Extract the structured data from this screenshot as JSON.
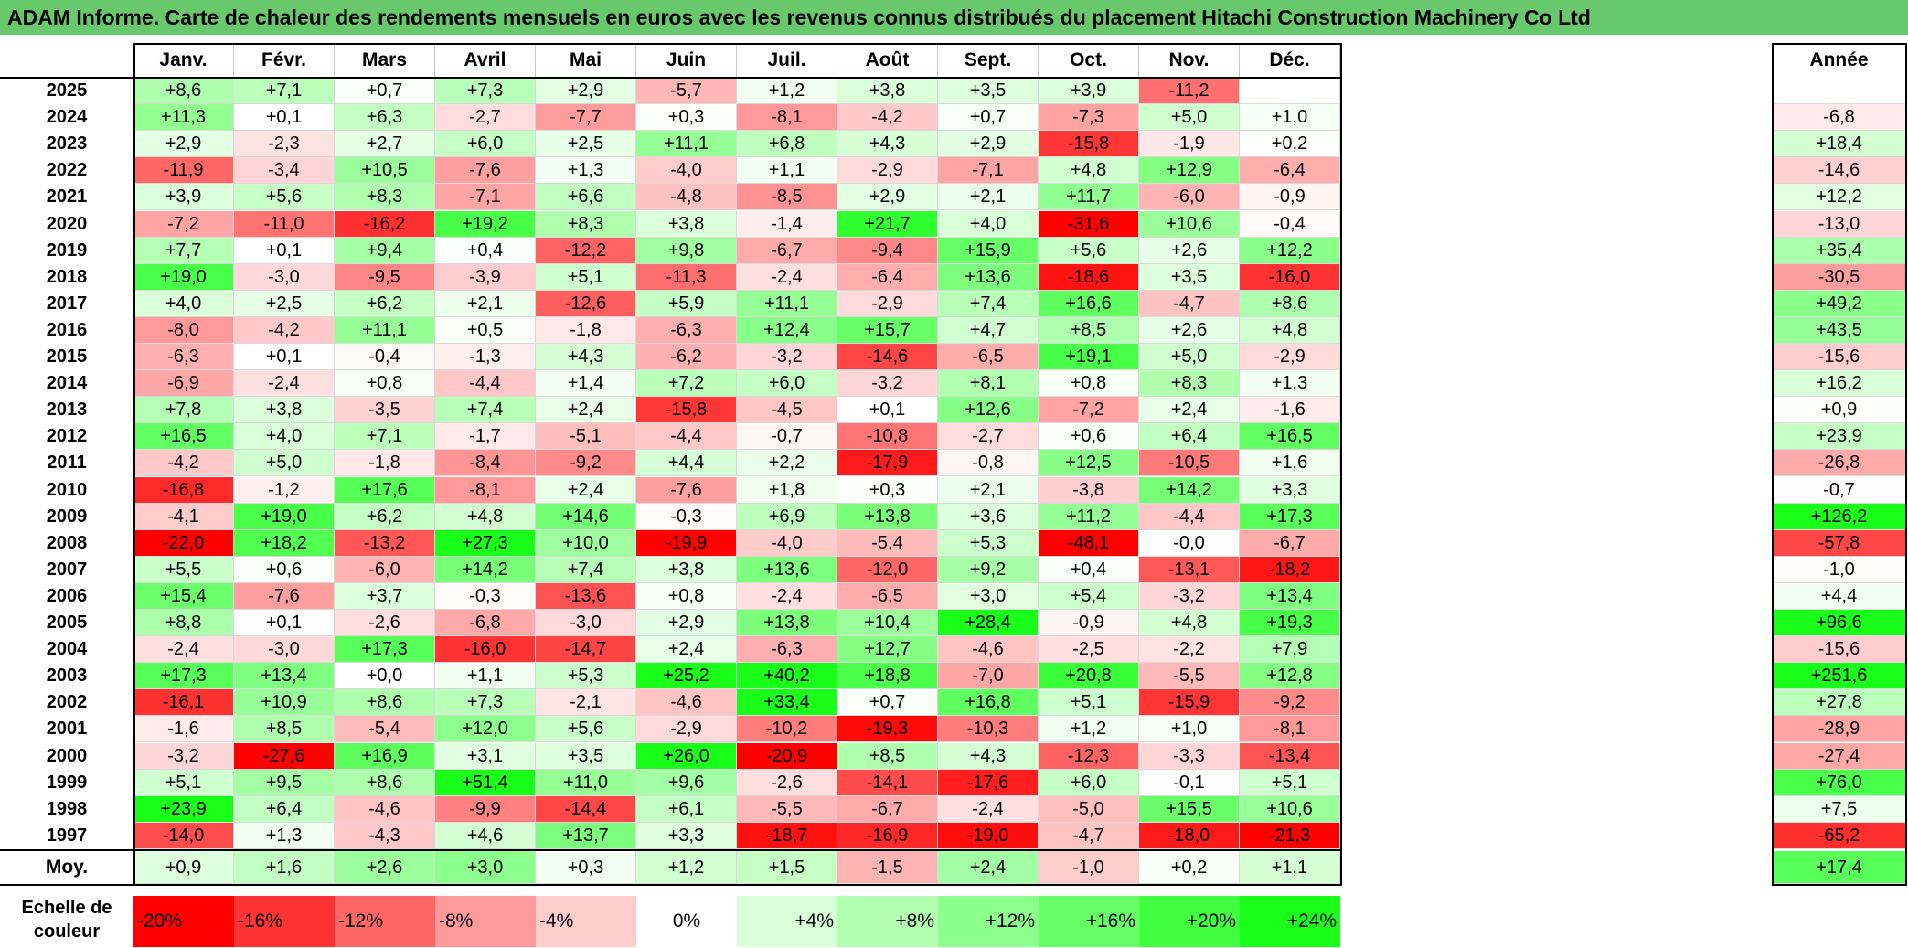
{
  "title": "ADAM Informe. Carte de chaleur des rendements mensuels en euros avec les revenus connus distribués du placement Hitachi Construction Machinery Co Ltd",
  "colors": {
    "title_bg": "#67c96c",
    "negative": "#ff0000",
    "neutral": "#ffffff",
    "positive": "#19ff19"
  },
  "chart_data": {
    "type": "heatmap",
    "months": [
      "Janv.",
      "Févr.",
      "Mars",
      "Avril",
      "Mai",
      "Juin",
      "Juil.",
      "Août",
      "Sept.",
      "Oct.",
      "Nov.",
      "Déc."
    ],
    "annual_label": "Année",
    "rows": [
      {
        "year": "2025",
        "values": [
          "+8,6",
          "+7,1",
          "+0,7",
          "+7,3",
          "+2,9",
          "-5,7",
          "+1,2",
          "+3,8",
          "+3,5",
          "+3,9",
          "-11,2",
          ""
        ],
        "annual": ""
      },
      {
        "year": "2024",
        "values": [
          "+11,3",
          "+0,1",
          "+6,3",
          "-2,7",
          "-7,7",
          "+0,3",
          "-8,1",
          "-4,2",
          "+0,7",
          "-7,3",
          "+5,0",
          "+1,0"
        ],
        "annual": "-6,8"
      },
      {
        "year": "2023",
        "values": [
          "+2,9",
          "-2,3",
          "+2,7",
          "+6,0",
          "+2,5",
          "+11,1",
          "+6,8",
          "+4,3",
          "+2,9",
          "-15,8",
          "-1,9",
          "+0,2"
        ],
        "annual": "+18,4"
      },
      {
        "year": "2022",
        "values": [
          "-11,9",
          "-3,4",
          "+10,5",
          "-7,6",
          "+1,3",
          "-4,0",
          "+1,1",
          "-2,9",
          "-7,1",
          "+4,8",
          "+12,9",
          "-6,4"
        ],
        "annual": "-14,6"
      },
      {
        "year": "2021",
        "values": [
          "+3,9",
          "+5,6",
          "+8,3",
          "-7,1",
          "+6,6",
          "-4,8",
          "-8,5",
          "+2,9",
          "+2,1",
          "+11,7",
          "-6,0",
          "-0,9"
        ],
        "annual": "+12,2"
      },
      {
        "year": "2020",
        "values": [
          "-7,2",
          "-11,0",
          "-16,2",
          "+19,2",
          "+8,3",
          "+3,8",
          "-1,4",
          "+21,7",
          "+4,0",
          "-31,6",
          "+10,6",
          "-0,4"
        ],
        "annual": "-13,0"
      },
      {
        "year": "2019",
        "values": [
          "+7,7",
          "+0,1",
          "+9,4",
          "+0,4",
          "-12,2",
          "+9,8",
          "-6,7",
          "-9,4",
          "+15,9",
          "+5,6",
          "+2,6",
          "+12,2"
        ],
        "annual": "+35,4"
      },
      {
        "year": "2018",
        "values": [
          "+19,0",
          "-3,0",
          "-9,5",
          "-3,9",
          "+5,1",
          "-11,3",
          "-2,4",
          "-6,4",
          "+13,6",
          "-18,6",
          "+3,5",
          "-16,0"
        ],
        "annual": "-30,5"
      },
      {
        "year": "2017",
        "values": [
          "+4,0",
          "+2,5",
          "+6,2",
          "+2,1",
          "-12,6",
          "+5,9",
          "+11,1",
          "-2,9",
          "+7,4",
          "+16,6",
          "-4,7",
          "+8,6"
        ],
        "annual": "+49,2"
      },
      {
        "year": "2016",
        "values": [
          "-8,0",
          "-4,2",
          "+11,1",
          "+0,5",
          "-1,8",
          "-6,3",
          "+12,4",
          "+15,7",
          "+4,7",
          "+8,5",
          "+2,6",
          "+4,8"
        ],
        "annual": "+43,5"
      },
      {
        "year": "2015",
        "values": [
          "-6,3",
          "+0,1",
          "-0,4",
          "-1,3",
          "+4,3",
          "-6,2",
          "-3,2",
          "-14,6",
          "-6,5",
          "+19,1",
          "+5,0",
          "-2,9"
        ],
        "annual": "-15,6"
      },
      {
        "year": "2014",
        "values": [
          "-6,9",
          "-2,4",
          "+0,8",
          "-4,4",
          "+1,4",
          "+7,2",
          "+6,0",
          "-3,2",
          "+8,1",
          "+0,8",
          "+8,3",
          "+1,3"
        ],
        "annual": "+16,2"
      },
      {
        "year": "2013",
        "values": [
          "+7,8",
          "+3,8",
          "-3,5",
          "+7,4",
          "+2,4",
          "-15,8",
          "-4,5",
          "+0,1",
          "+12,6",
          "-7,2",
          "+2,4",
          "-1,6"
        ],
        "annual": "+0,9"
      },
      {
        "year": "2012",
        "values": [
          "+16,5",
          "+4,0",
          "+7,1",
          "-1,7",
          "-5,1",
          "-4,4",
          "-0,7",
          "-10,8",
          "-2,7",
          "+0,6",
          "+6,4",
          "+16,5"
        ],
        "annual": "+23,9"
      },
      {
        "year": "2011",
        "values": [
          "-4,2",
          "+5,0",
          "-1,8",
          "-8,4",
          "-9,2",
          "+4,4",
          "+2,2",
          "-17,9",
          "-0,8",
          "+12,5",
          "-10,5",
          "+1,6"
        ],
        "annual": "-26,8"
      },
      {
        "year": "2010",
        "values": [
          "-16,8",
          "-1,2",
          "+17,6",
          "-8,1",
          "+2,4",
          "-7,6",
          "+1,8",
          "+0,3",
          "+2,1",
          "-3,8",
          "+14,2",
          "+3,3"
        ],
        "annual": "-0,7"
      },
      {
        "year": "2009",
        "values": [
          "-4,1",
          "+19,0",
          "+6,2",
          "+4,8",
          "+14,6",
          "-0,3",
          "+6,9",
          "+13,8",
          "+3,6",
          "+11,2",
          "-4,4",
          "+17,3"
        ],
        "annual": "+126,2"
      },
      {
        "year": "2008",
        "values": [
          "-22,0",
          "+18,2",
          "-13,2",
          "+27,3",
          "+10,0",
          "-19,9",
          "-4,0",
          "-5,4",
          "+5,3",
          "-48,1",
          "-0,0",
          "-6,7"
        ],
        "annual": "-57,8"
      },
      {
        "year": "2007",
        "values": [
          "+5,5",
          "+0,6",
          "-6,0",
          "+14,2",
          "+7,4",
          "+3,8",
          "+13,6",
          "-12,0",
          "+9,2",
          "+0,4",
          "-13,1",
          "-18,2"
        ],
        "annual": "-1,0"
      },
      {
        "year": "2006",
        "values": [
          "+15,4",
          "-7,6",
          "+3,7",
          "-0,3",
          "-13,6",
          "+0,8",
          "-2,4",
          "-6,5",
          "+3,0",
          "+5,4",
          "-3,2",
          "+13,4"
        ],
        "annual": "+4,4"
      },
      {
        "year": "2005",
        "values": [
          "+8,8",
          "+0,1",
          "-2,6",
          "-6,8",
          "-3,0",
          "+2,9",
          "+13,8",
          "+10,4",
          "+28,4",
          "-0,9",
          "+4,8",
          "+19,3"
        ],
        "annual": "+96,6"
      },
      {
        "year": "2004",
        "values": [
          "-2,4",
          "-3,0",
          "+17,3",
          "-16,0",
          "-14,7",
          "+2,4",
          "-6,3",
          "+12,7",
          "-4,6",
          "-2,5",
          "-2,2",
          "+7,9"
        ],
        "annual": "-15,6"
      },
      {
        "year": "2003",
        "values": [
          "+17,3",
          "+13,4",
          "+0,0",
          "+1,1",
          "+5,3",
          "+25,2",
          "+40,2",
          "+18,8",
          "-7,0",
          "+20,8",
          "-5,5",
          "+12,8"
        ],
        "annual": "+251,6"
      },
      {
        "year": "2002",
        "values": [
          "-16,1",
          "+10,9",
          "+8,6",
          "+7,3",
          "-2,1",
          "-4,6",
          "+33,4",
          "+0,7",
          "+16,8",
          "+5,1",
          "-15,9",
          "-9,2"
        ],
        "annual": "+27,8"
      },
      {
        "year": "2001",
        "values": [
          "-1,6",
          "+8,5",
          "-5,4",
          "+12,0",
          "+5,6",
          "-2,9",
          "-10,2",
          "-19,3",
          "-10,3",
          "+1,2",
          "+1,0",
          "-8,1"
        ],
        "annual": "-28,9"
      },
      {
        "year": "2000",
        "values": [
          "-3,2",
          "-27,6",
          "+16,9",
          "+3,1",
          "+3,5",
          "+26,0",
          "-20,9",
          "+8,5",
          "+4,3",
          "-12,3",
          "-3,3",
          "-13,4"
        ],
        "annual": "-27,4"
      },
      {
        "year": "1999",
        "values": [
          "+5,1",
          "+9,5",
          "+8,6",
          "+51,4",
          "+11,0",
          "+9,6",
          "-2,6",
          "-14,1",
          "-17,6",
          "+6,0",
          "-0,1",
          "+5,1"
        ],
        "annual": "+76,0"
      },
      {
        "year": "1998",
        "values": [
          "+23,9",
          "+6,4",
          "-4,6",
          "-9,9",
          "-14,4",
          "+6,1",
          "-5,5",
          "-6,7",
          "-2,4",
          "-5,0",
          "+15,5",
          "+10,6"
        ],
        "annual": "+7,5"
      },
      {
        "year": "1997",
        "values": [
          "-14,0",
          "+1,3",
          "-4,3",
          "+4,6",
          "+13,7",
          "+3,3",
          "-18,7",
          "-16,9",
          "-19,0",
          "-4,7",
          "-18,0",
          "-21,3"
        ],
        "annual": "-65,2"
      }
    ],
    "average": {
      "label": "Moy.",
      "values": [
        "+0,9",
        "+1,6",
        "+2,6",
        "+3,0",
        "+0,3",
        "+1,2",
        "+1,5",
        "-1,5",
        "+2,4",
        "-1,0",
        "+0,2",
        "+1,1"
      ],
      "annual": "+17,4"
    },
    "scale": {
      "label": "Echelle de couleur",
      "steps": [
        "-20%",
        "-16%",
        "-12%",
        "-8%",
        "-4%",
        "0%",
        "+4%",
        "+8%",
        "+12%",
        "+16%",
        "+20%",
        "+24%"
      ]
    }
  }
}
